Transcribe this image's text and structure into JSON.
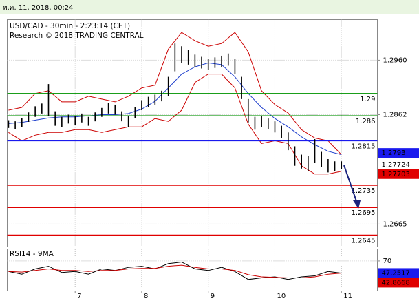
{
  "header": {
    "date": "พ.ค. 11, 2018, 00:24"
  },
  "chart_data": [
    {
      "type": "hilo",
      "title": "USD/CAD - 30min - 2:23:14 (CET)",
      "subtitle": "Research © 2018 TRADING CENTRAL",
      "bar_color": "#000000",
      "x": [
        6.0,
        6.1,
        6.2,
        6.3,
        6.4,
        6.5,
        6.6,
        6.7,
        6.8,
        6.9,
        7.0,
        7.1,
        7.2,
        7.3,
        7.4,
        7.5,
        7.6,
        7.7,
        7.8,
        7.9,
        8.0,
        8.1,
        8.2,
        8.3,
        8.4,
        8.5,
        8.6,
        8.7,
        8.8,
        8.9,
        9.0,
        9.1,
        9.2,
        9.3,
        9.4,
        9.5,
        9.6,
        9.7,
        9.8,
        9.9,
        10.0,
        10.1,
        10.2,
        10.3,
        10.4,
        10.5,
        10.6,
        10.7,
        10.8,
        10.9,
        11.0
      ],
      "high": [
        1.2852,
        1.285,
        1.2856,
        1.2866,
        1.2877,
        1.2882,
        1.2917,
        1.2868,
        1.2858,
        1.2862,
        1.286,
        1.2864,
        1.2858,
        1.2866,
        1.2874,
        1.2883,
        1.288,
        1.2868,
        1.286,
        1.2876,
        1.2888,
        1.2894,
        1.2898,
        1.2905,
        1.293,
        1.299,
        1.2985,
        1.2978,
        1.297,
        1.2966,
        1.2962,
        1.2965,
        1.2968,
        1.2972,
        1.2962,
        1.293,
        1.289,
        1.2858,
        1.286,
        1.2855,
        1.285,
        1.2842,
        1.283,
        1.2805,
        1.279,
        1.2788,
        1.2818,
        1.2795,
        1.2782,
        1.2778,
        1.2778
      ],
      "low": [
        1.2838,
        1.2836,
        1.284,
        1.2849,
        1.2858,
        1.2864,
        1.286,
        1.2842,
        1.284,
        1.2846,
        1.2844,
        1.2848,
        1.2842,
        1.285,
        1.2858,
        1.2864,
        1.2862,
        1.285,
        1.284,
        1.2856,
        1.287,
        1.2876,
        1.288,
        1.2886,
        1.2895,
        1.294,
        1.2955,
        1.2952,
        1.2948,
        1.2945,
        1.2942,
        1.2946,
        1.2948,
        1.295,
        1.2935,
        1.289,
        1.2848,
        1.2835,
        1.284,
        1.2836,
        1.283,
        1.282,
        1.2798,
        1.277,
        1.2765,
        1.276,
        1.2775,
        1.2768,
        1.2758,
        1.276,
        1.2764
      ],
      "indicators": {
        "x": [
          6.0,
          6.2,
          6.4,
          6.6,
          6.8,
          7.0,
          7.2,
          7.4,
          7.6,
          7.8,
          8.0,
          8.2,
          8.4,
          8.6,
          8.8,
          9.0,
          9.2,
          9.4,
          9.6,
          9.8,
          10.0,
          10.2,
          10.4,
          10.6,
          10.8,
          11.0
        ],
        "series": [
          {
            "color": "#cc0000",
            "values": [
              1.287,
              1.2875,
              1.29,
              1.2905,
              1.2885,
              1.2885,
              1.2895,
              1.289,
              1.2885,
              1.2895,
              1.291,
              1.2915,
              1.298,
              1.301,
              1.2995,
              1.2985,
              1.299,
              1.301,
              1.2975,
              1.2905,
              1.288,
              1.2865,
              1.2835,
              1.282,
              1.2815,
              1.279
            ]
          },
          {
            "color": "#cc0000",
            "values": [
              1.283,
              1.2815,
              1.2825,
              1.283,
              1.283,
              1.2835,
              1.2835,
              1.283,
              1.2835,
              1.284,
              1.284,
              1.2855,
              1.285,
              1.287,
              1.292,
              1.2935,
              1.2935,
              1.291,
              1.2845,
              1.281,
              1.2815,
              1.281,
              1.277,
              1.2755,
              1.2755,
              1.276
            ]
          },
          {
            "color": "#1f3fcc",
            "values": [
              1.2846,
              1.2848,
              1.2852,
              1.2856,
              1.2858,
              1.2858,
              1.286,
              1.2862,
              1.2862,
              1.2864,
              1.2872,
              1.2886,
              1.291,
              1.2935,
              1.2948,
              1.2955,
              1.2952,
              1.293,
              1.29,
              1.2875,
              1.2855,
              1.284,
              1.2822,
              1.2808,
              1.2796,
              1.279
            ]
          }
        ]
      },
      "levels": [
        {
          "value": 1.29,
          "color": "#1a9e1a"
        },
        {
          "value": 1.286,
          "color": "#1a9e1a"
        },
        {
          "value": 1.2815,
          "color": "#1a1aee"
        },
        {
          "value": 1.2735,
          "color": "#e00000"
        },
        {
          "value": 1.2695,
          "color": "#e00000"
        },
        {
          "value": 1.2645,
          "color": "#e00000"
        }
      ],
      "price_tags": [
        {
          "value": 1.2793,
          "bg": "#1a1aee",
          "fg": "#ffffff"
        },
        {
          "value": 1.27724,
          "bg": "#ffffff",
          "fg": "#000000"
        },
        {
          "value": 1.27703,
          "bg": "#e00000",
          "fg": "#ffffff"
        }
      ],
      "xlim": [
        5.98,
        11.54
      ],
      "ylim": [
        1.2624,
        1.3033
      ],
      "yticks": [
        {
          "value": 1.296,
          "label": "1.2960"
        },
        1.2862,
        1.2665
      ],
      "grid": true
    },
    {
      "type": "line",
      "title": "RSI14 - 9MA",
      "x": [
        6.0,
        6.2,
        6.4,
        6.6,
        6.8,
        7.0,
        7.2,
        7.4,
        7.6,
        7.8,
        8.0,
        8.2,
        8.4,
        8.6,
        8.8,
        9.0,
        9.2,
        9.4,
        9.6,
        9.8,
        10.0,
        10.2,
        10.4,
        10.6,
        10.8,
        11.0
      ],
      "series": [
        {
          "color": "#000000",
          "values": [
            50,
            45,
            55,
            60,
            48,
            50,
            45,
            55,
            52,
            58,
            60,
            55,
            65,
            68,
            55,
            52,
            58,
            50,
            35,
            38,
            40,
            35,
            40,
            42,
            50,
            47
          ]
        },
        {
          "color": "#cc0000",
          "values": [
            50,
            49,
            52,
            55,
            52,
            52,
            50,
            52,
            52,
            55,
            56,
            56,
            60,
            62,
            58,
            55,
            55,
            52,
            44,
            40,
            39,
            38,
            38,
            40,
            45,
            47
          ]
        }
      ],
      "tags": [
        {
          "value": 47.2517,
          "bg": "#1a1aee",
          "fg": "#ffffff"
        },
        {
          "value": 42.8668,
          "bg": "#e00000",
          "fg": "#ffffff"
        }
      ],
      "xlim": [
        5.98,
        11.54
      ],
      "xticks": [
        7,
        8,
        9,
        10,
        11
      ],
      "ylim": [
        14,
        92
      ],
      "yticks": [
        70
      ],
      "grid": true
    }
  ]
}
